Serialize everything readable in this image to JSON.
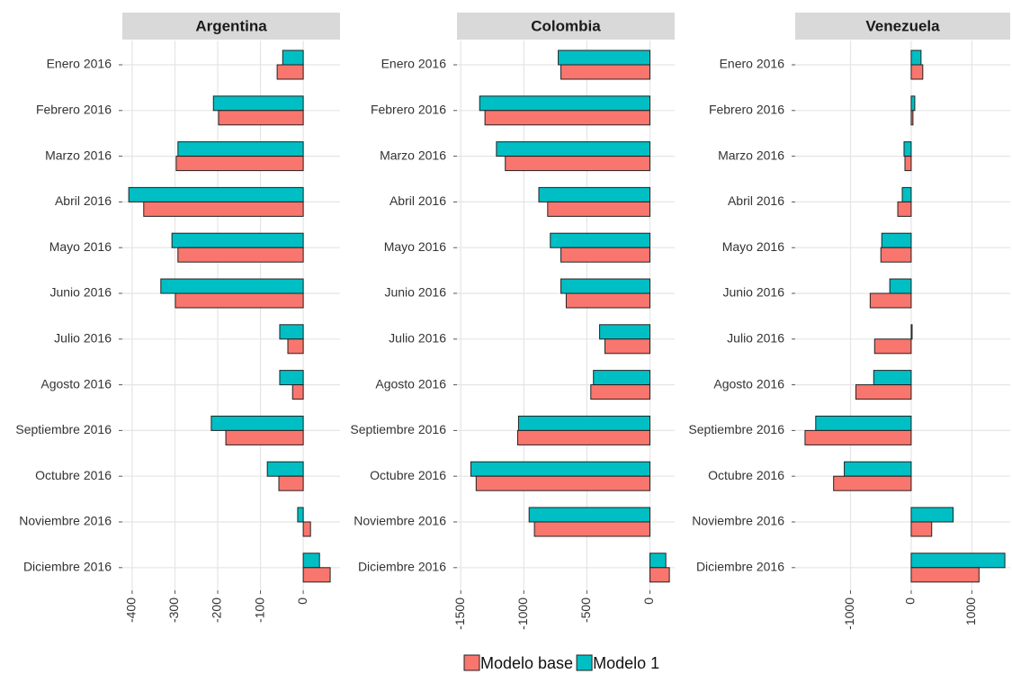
{
  "chart_data": [
    {
      "type": "bar",
      "orientation": "horizontal",
      "title": "Argentina",
      "categories": [
        "Enero 2016",
        "Febrero 2016",
        "Marzo 2016",
        "Abril 2016",
        "Mayo 2016",
        "Junio 2016",
        "Julio 2016",
        "Agosto 2016",
        "Septiembre 2016",
        "Octubre 2016",
        "Noviembre 2016",
        "Diciembre 2016"
      ],
      "series": [
        {
          "name": "Modelo base",
          "color": "#F8766D",
          "values": [
            -61,
            -198,
            -297,
            -373,
            -293,
            -299,
            -36,
            -25,
            -181,
            -57,
            17,
            63
          ]
        },
        {
          "name": "Modelo 1",
          "color": "#00BFC4",
          "values": [
            -48,
            -210,
            -293,
            -408,
            -307,
            -333,
            -55,
            -55,
            -215,
            -84,
            -13,
            38
          ]
        }
      ],
      "xlim": [
        -423,
        86
      ],
      "xticks": [
        -400,
        -300,
        -200,
        -100,
        0
      ],
      "grid": true
    },
    {
      "type": "bar",
      "orientation": "horizontal",
      "title": "Colombia",
      "categories": [
        "Enero 2016",
        "Febrero 2016",
        "Marzo 2016",
        "Abril 2016",
        "Mayo 2016",
        "Junio 2016",
        "Julio 2016",
        "Agosto 2016",
        "Septiembre 2016",
        "Octubre 2016",
        "Noviembre 2016",
        "Diciembre 2016"
      ],
      "series": [
        {
          "name": "Modelo base",
          "color": "#F8766D",
          "values": [
            -706,
            -1308,
            -1147,
            -811,
            -706,
            -664,
            -357,
            -469,
            -1049,
            -1378,
            -916,
            154
          ]
        },
        {
          "name": "Modelo 1",
          "color": "#00BFC4",
          "values": [
            -727,
            -1350,
            -1217,
            -881,
            -790,
            -706,
            -399,
            -448,
            -1042,
            -1420,
            -958,
            126
          ]
        }
      ],
      "xlim": [
        -1530,
        196
      ],
      "xticks": [
        -1500,
        -1000,
        -500,
        0
      ],
      "grid": true
    },
    {
      "type": "bar",
      "orientation": "horizontal",
      "title": "Venezuela",
      "categories": [
        "Enero 2016",
        "Febrero 2016",
        "Marzo 2016",
        "Abril 2016",
        "Mayo 2016",
        "Junio 2016",
        "Julio 2016",
        "Agosto 2016",
        "Septiembre 2016",
        "Octubre 2016",
        "Noviembre 2016",
        "Diciembre 2016"
      ],
      "series": [
        {
          "name": "Modelo base",
          "color": "#F8766D",
          "values": [
            191,
            29,
            -103,
            -221,
            -500,
            -676,
            -603,
            -912,
            -1750,
            -1279,
            338,
            1118
          ]
        },
        {
          "name": "Modelo 1",
          "color": "#00BFC4",
          "values": [
            162,
            59,
            -118,
            -147,
            -485,
            -353,
            15,
            -618,
            -1574,
            -1103,
            691,
            1544
          ]
        }
      ],
      "xlim": [
        -1912,
        1632
      ],
      "xticks": [
        -1000,
        0,
        1000
      ],
      "grid": true
    }
  ]
}
